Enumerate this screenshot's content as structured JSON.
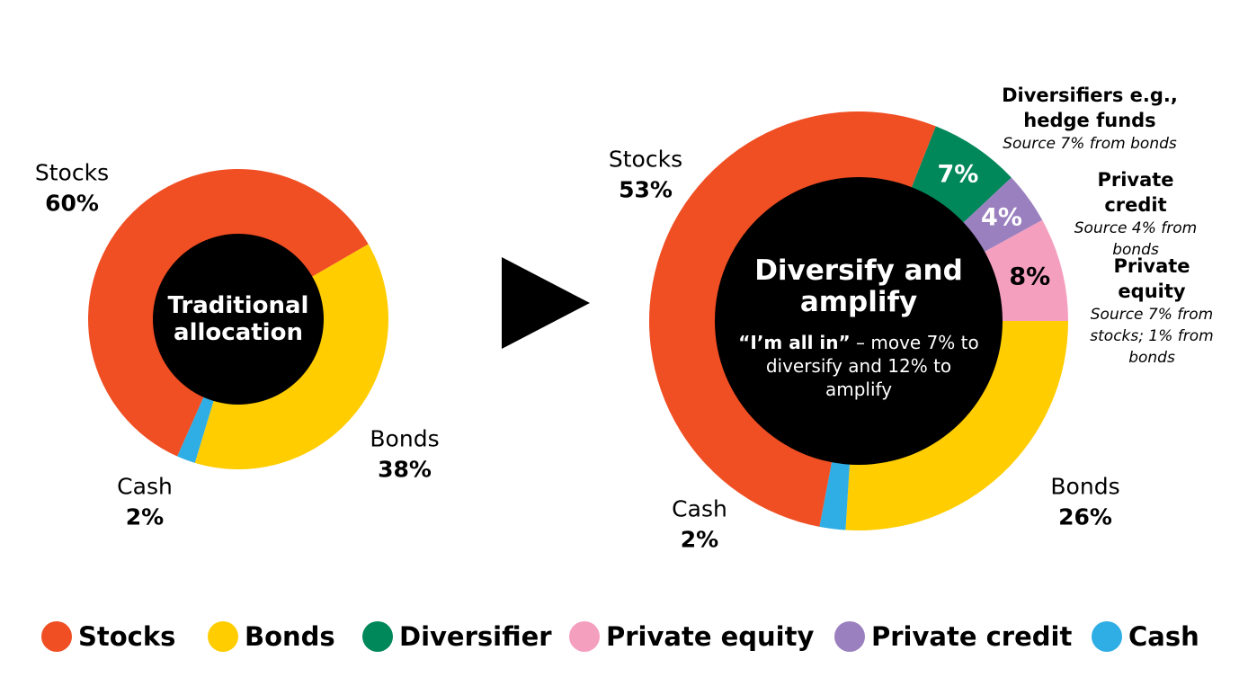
{
  "chart_data": [
    {
      "type": "donut",
      "center_title": "Traditional allocation",
      "categories": [
        "Bonds",
        "Cash",
        "Stocks"
      ],
      "values": [
        38,
        2,
        60
      ],
      "value_labels": [
        "38%",
        "2%",
        "60%"
      ],
      "colors": [
        "#ffcd00",
        "#2eaee5",
        "#f04e23"
      ]
    },
    {
      "type": "donut",
      "center_title": "Diversify and amplify",
      "center_note_bold": "“I’m all in”",
      "center_note": " – move 7% to diversify and 12% to amplify",
      "categories": [
        "Diversifiers e.g., hedge funds",
        "Private credit",
        "Private equity",
        "Bonds",
        "Cash",
        "Stocks"
      ],
      "notes": [
        "Source 7% from bonds",
        "Source 4% from bonds",
        "Source 7% from stocks; 1% from bonds",
        null,
        null,
        null
      ],
      "values": [
        7,
        4,
        8,
        26,
        2,
        53
      ],
      "value_labels": [
        "7%",
        "4%",
        "8%",
        "26%",
        "2%",
        "53%"
      ],
      "colors": [
        "#00875a",
        "#9b80bf",
        "#f59fbf",
        "#ffcd00",
        "#2eaee5",
        "#f04e23"
      ]
    }
  ],
  "legend": [
    {
      "name": "Stocks",
      "color": "#f04e23"
    },
    {
      "name": "Bonds",
      "color": "#ffcd00"
    },
    {
      "name": "Diversifier",
      "color": "#00875a"
    },
    {
      "name": "Private equity",
      "color": "#f59fbf"
    },
    {
      "name": "Private credit",
      "color": "#9b80bf"
    },
    {
      "name": "Cash",
      "color": "#2eaee5"
    }
  ]
}
